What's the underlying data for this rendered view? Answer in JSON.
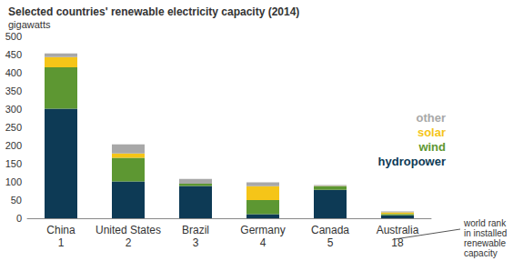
{
  "chart_data": {
    "type": "bar",
    "stacked": true,
    "title": "Selected countries' renewable electricity capacity (2014)",
    "subtitle": "gigawatts",
    "categories": [
      "China\n1",
      "United States\n2",
      "Brazil\n3",
      "Germany\n4",
      "Canada\n5",
      "Australia\n18"
    ],
    "series": [
      {
        "name": "hydropower",
        "color": "#0d3a55",
        "values": [
          301,
          101,
          89,
          11,
          78,
          8
        ]
      },
      {
        "name": "wind",
        "color": "#5d9732",
        "values": [
          114,
          65,
          6,
          39,
          10,
          4
        ]
      },
      {
        "name": "solar",
        "color": "#f5c518",
        "values": [
          28,
          12,
          0,
          38,
          1,
          4
        ]
      },
      {
        "name": "other",
        "color": "#a8a8a8",
        "values": [
          10,
          25,
          13,
          11,
          2,
          3
        ]
      }
    ],
    "ylim": [
      0,
      500
    ],
    "yticks": [
      0,
      50,
      100,
      150,
      200,
      250,
      300,
      350,
      400,
      450,
      500
    ],
    "grid": false,
    "legend": "right",
    "annotations": [
      "world rank\nin installed\nrenewable\ncapacity"
    ]
  }
}
